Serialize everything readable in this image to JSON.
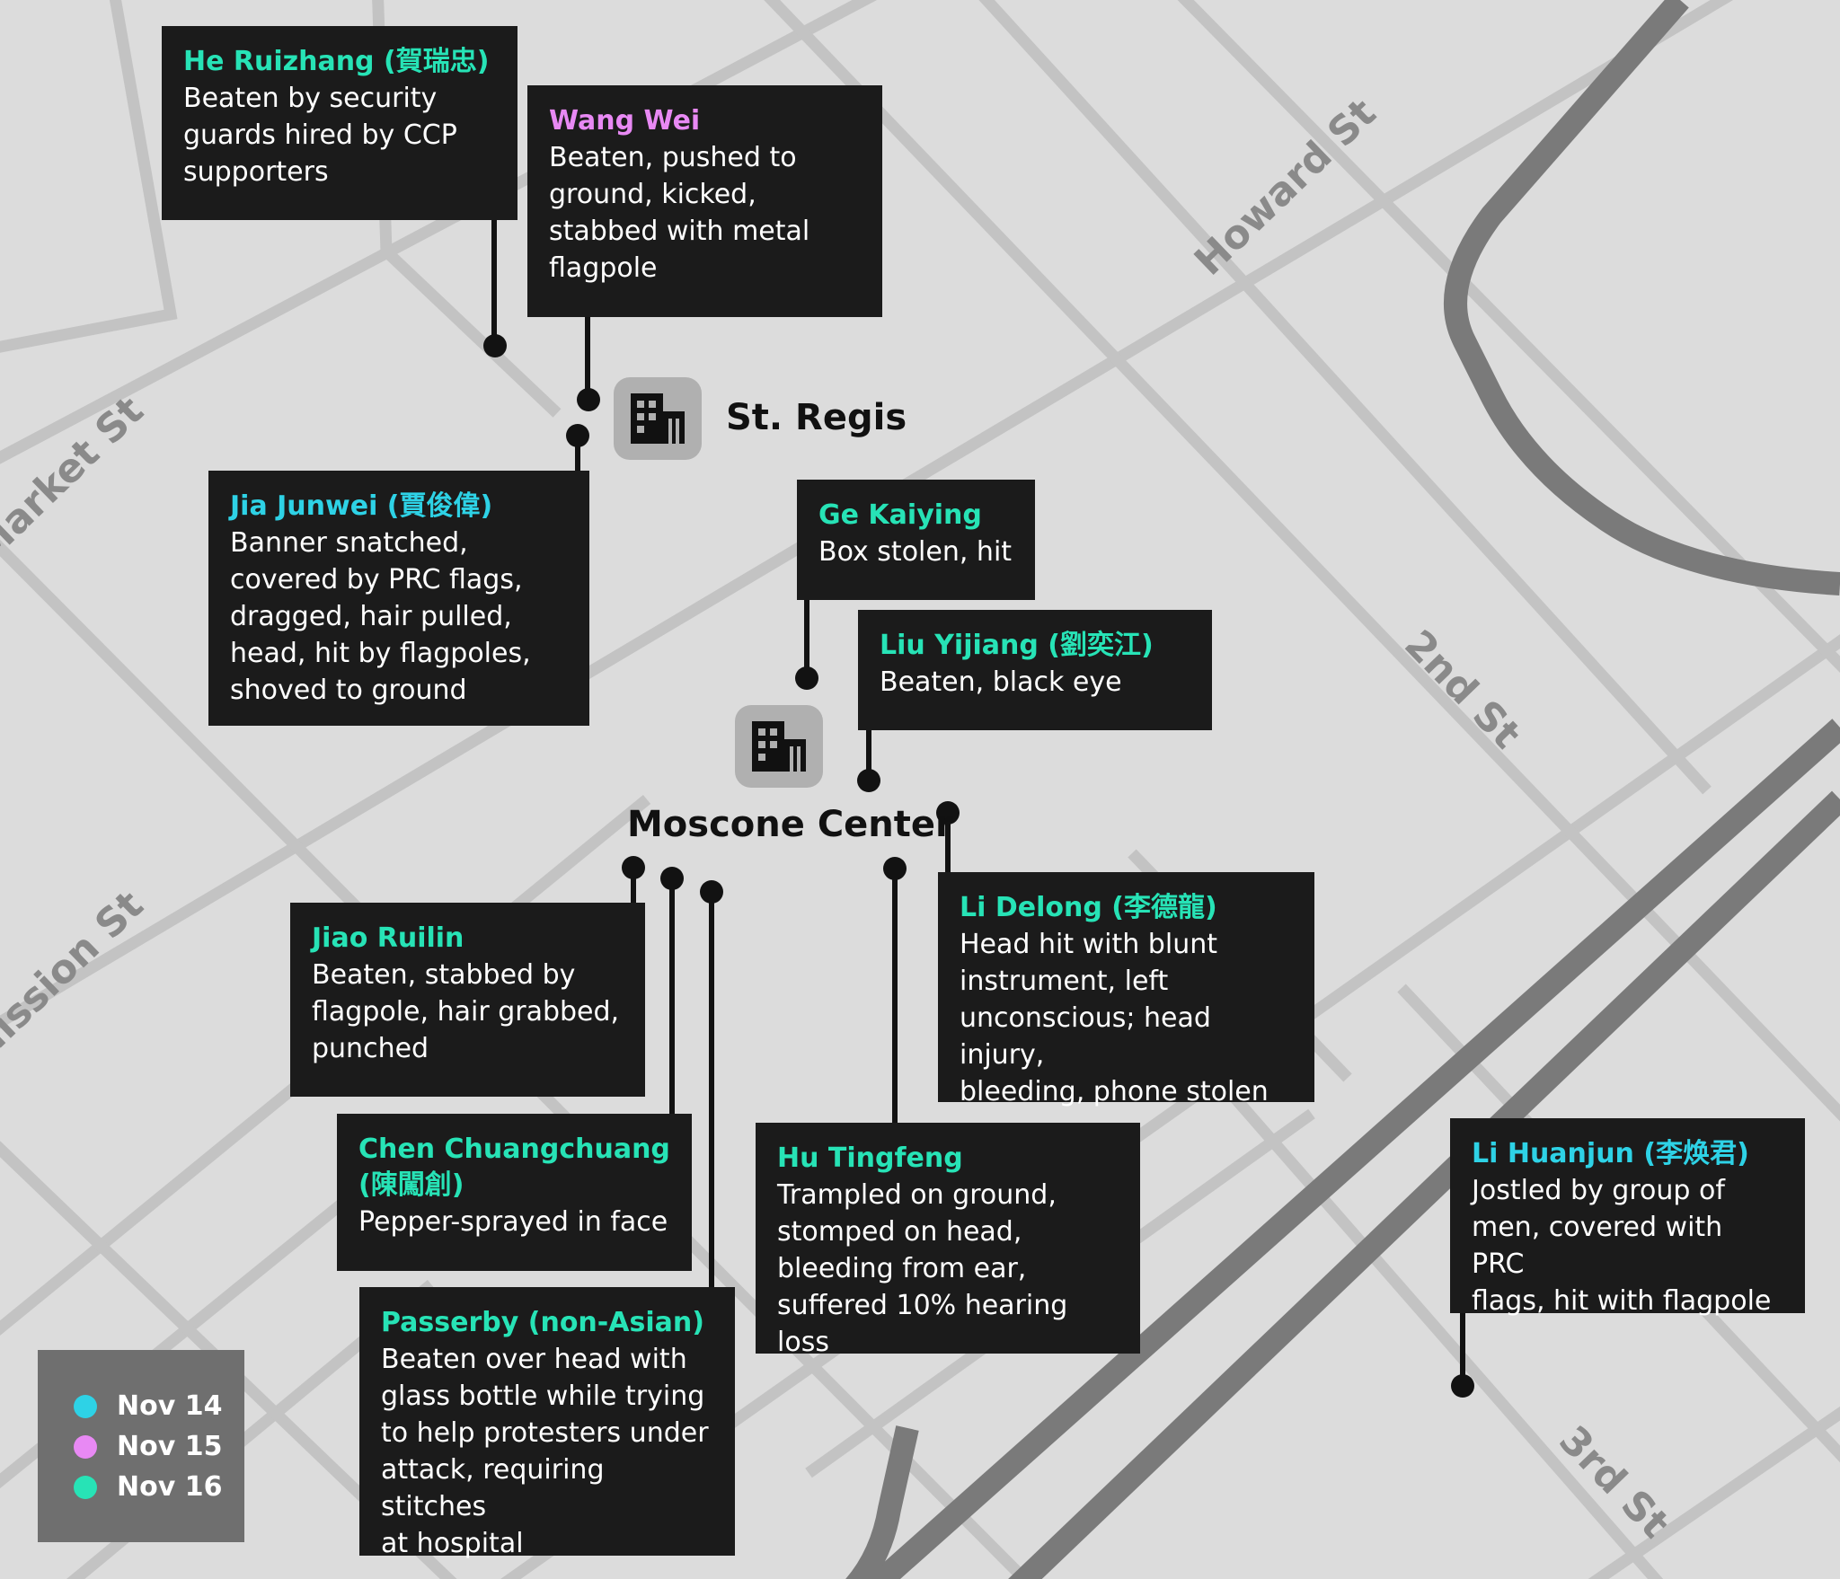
{
  "roads": {
    "market": "Market St",
    "mission": "Mission St",
    "howard": "Howard St",
    "second": "2nd St",
    "third": "3rd St"
  },
  "places": {
    "st_regis": "St. Regis",
    "moscone": "Moscone Center"
  },
  "colors": {
    "nov14": "#2ed2e6",
    "nov15": "#e889f4",
    "nov16": "#27e3b6"
  },
  "legend": [
    {
      "label": "Nov 14",
      "color": "#2ed2e6"
    },
    {
      "label": "Nov 15",
      "color": "#e889f4"
    },
    {
      "label": "Nov 16",
      "color": "#27e3b6"
    }
  ],
  "incidents": [
    {
      "name": "He Ruizhang (賀瑞忠)",
      "date": "Nov 16",
      "desc": [
        "Beaten by security",
        "guards hired by CCP",
        "supporters"
      ]
    },
    {
      "name": "Wang Wei",
      "date": "Nov 15",
      "desc": [
        "Beaten, pushed to",
        "ground, kicked,",
        "stabbed with metal",
        "flagpole"
      ]
    },
    {
      "name": "Jia Junwei (賈俊偉)",
      "date": "Nov 14",
      "desc": [
        "Banner snatched,",
        "covered by PRC flags,",
        "dragged, hair pulled,",
        "head, hit by flagpoles,",
        "shoved to ground"
      ]
    },
    {
      "name": "Ge Kaiying",
      "date": "Nov 16",
      "desc": [
        "Box stolen, hit"
      ]
    },
    {
      "name": "Liu Yijiang (劉奕江)",
      "date": "Nov 16",
      "desc": [
        "Beaten, black eye"
      ]
    },
    {
      "name": "Li Delong (李德龍)",
      "date": "Nov 16",
      "desc": [
        "Head hit with blunt",
        "instrument, left",
        "unconscious; head injury,",
        "bleeding, phone stolen"
      ]
    },
    {
      "name": "Jiao Ruilin",
      "date": "Nov 16",
      "desc": [
        "Beaten, stabbed by",
        "flagpole, hair grabbed,",
        "punched"
      ]
    },
    {
      "name": "Chen Chuangchuang",
      "name2": "(陳闖創)",
      "date": "Nov 16",
      "desc": [
        "Pepper-sprayed in face"
      ]
    },
    {
      "name": "Hu Tingfeng",
      "date": "Nov 16",
      "desc": [
        "Trampled on ground,",
        "stomped on head,",
        "bleeding from ear,",
        "suffered 10% hearing loss"
      ]
    },
    {
      "name": "Passerby (non-Asian)",
      "date": "Nov 16",
      "desc": [
        "Beaten over head with",
        "glass bottle while trying",
        "to help protesters under",
        "attack, requiring stitches",
        "at hospital"
      ]
    },
    {
      "name": "Li Huanjun (李焕君)",
      "date": "Nov 14",
      "desc": [
        "Jostled by group of",
        "men, covered with PRC",
        "flags, hit with flagpole"
      ]
    }
  ]
}
